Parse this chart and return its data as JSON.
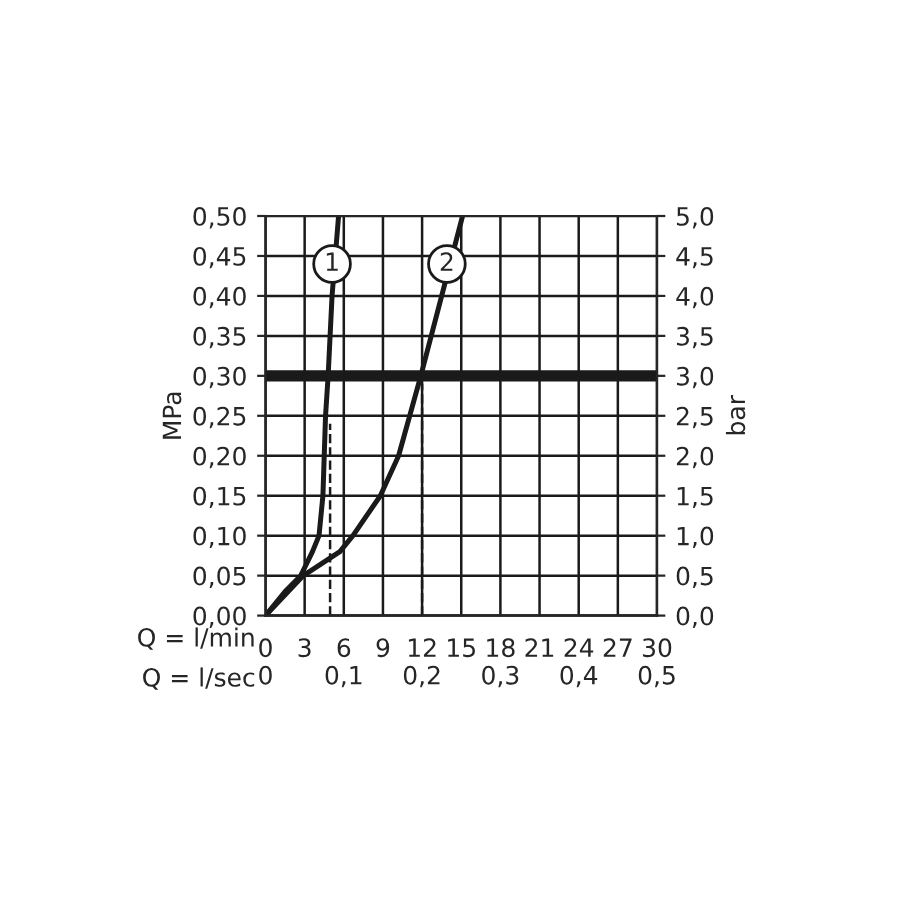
{
  "chart_data": {
    "type": "line",
    "xlabel": "Q = l/min",
    "x2label": "Q = l/sec",
    "ylabel": "MPa",
    "y2label": "bar",
    "series": [
      {
        "color": "#1a1a1a",
        "x": [
          0,
          1.5,
          2.7,
          3.6,
          4.1,
          4.4,
          4.6,
          4.8,
          5.1,
          5.6
        ],
        "values": [
          0,
          0.03,
          0.05,
          0.08,
          0.1,
          0.15,
          0.25,
          0.3,
          0.4,
          0.5
        ]
      },
      {
        "color": "#1a1a1a",
        "x": [
          0,
          2.9,
          5.7,
          6.7,
          8.8,
          10.2,
          11.9,
          13.5,
          15.1
        ],
        "values": [
          0,
          0.05,
          0.08,
          0.1,
          0.15,
          0.2,
          0.3,
          0.4,
          0.5
        ]
      },
      {
        "color": "#1a1a1a",
        "line_style": "dashed",
        "x": [
          4.95,
          4.95
        ],
        "values": [
          0,
          0.24
        ]
      },
      {
        "color": "#1a1a1a",
        "line_style": "dashed",
        "x": [
          12,
          12
        ],
        "values": [
          0,
          0.29
        ]
      }
    ],
    "annotations": [
      {
        "text": "1",
        "x": 5.1,
        "y": 0.44
      },
      {
        "text": "2",
        "x": 13.9,
        "y": 0.44
      }
    ],
    "ref_lines": [
      {
        "axis": "y",
        "value": 0.3,
        "color": "#1a1a1a"
      }
    ],
    "xlim": [
      0,
      30
    ],
    "xticks": [
      0,
      3,
      6,
      9,
      12,
      15,
      18,
      21,
      24,
      27,
      30
    ],
    "x2lim": [
      0,
      0.5
    ],
    "x2ticks": [
      {
        "value": 0,
        "label": "0"
      },
      {
        "value": 0.1,
        "label": "0,1"
      },
      {
        "value": 0.2,
        "label": "0,2"
      },
      {
        "value": 0.3,
        "label": "0,3"
      },
      {
        "value": 0.4,
        "label": "0,4"
      },
      {
        "value": 0.5,
        "label": "0,5"
      }
    ],
    "ylim": [
      0,
      0.5
    ],
    "yticks": [
      {
        "value": 0,
        "label": "0,00"
      },
      {
        "value": 0.05,
        "label": "0,05"
      },
      {
        "value": 0.1,
        "label": "0,10"
      },
      {
        "value": 0.15,
        "label": "0,15"
      },
      {
        "value": 0.2,
        "label": "0,20"
      },
      {
        "value": 0.25,
        "label": "0,25"
      },
      {
        "value": 0.3,
        "label": "0,30"
      },
      {
        "value": 0.35,
        "label": "0,35"
      },
      {
        "value": 0.4,
        "label": "0,40"
      },
      {
        "value": 0.45,
        "label": "0,45"
      },
      {
        "value": 0.5,
        "label": "0,50"
      }
    ],
    "y2lim": [
      0,
      5
    ],
    "y2ticks": [
      {
        "value": 0,
        "label": "0,0"
      },
      {
        "value": 0.5,
        "label": "0,5"
      },
      {
        "value": 1,
        "label": "1,0"
      },
      {
        "value": 1.5,
        "label": "1,5"
      },
      {
        "value": 2,
        "label": "2,0"
      },
      {
        "value": 2.5,
        "label": "2,5"
      },
      {
        "value": 3,
        "label": "3,0"
      },
      {
        "value": 3.5,
        "label": "3,5"
      },
      {
        "value": 4,
        "label": "4,0"
      },
      {
        "value": 4.5,
        "label": "4,5"
      },
      {
        "value": 5,
        "label": "5,0"
      }
    ],
    "grid": true,
    "legend": false,
    "line_style": "solid",
    "marker": "none"
  }
}
